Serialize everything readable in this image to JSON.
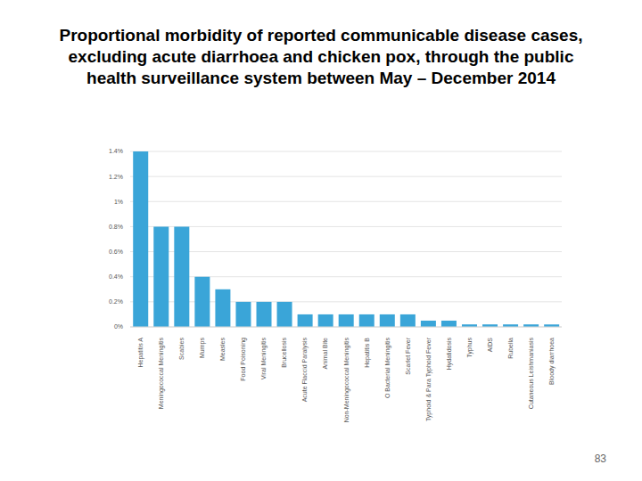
{
  "chart_data": {
    "type": "bar",
    "title": "Proportional morbidity of reported communicable disease cases, excluding acute diarrhoea and chicken pox, through the public health surveillance system between May – December 2014",
    "categories": [
      "Hepatitis A",
      "Meningococcal Meningitis",
      "Scabies",
      "Mumps",
      "Measles",
      "Food Poisoning",
      "Viral Meningitis",
      "Brucellosis",
      "Acute Flaccid Paralysis",
      "Animal Bite",
      "Non-Meningococcal Meningitis",
      "Hepatitis B",
      "O Bacterial Meningitis",
      "Scarlet Fever",
      "Typhoid & Para Typhoid Fever",
      "Hydatidosis",
      "Typhus",
      "AIDS",
      "Rubella",
      "Cutaneous Leishmaniasis",
      "Bloody diarrhoea"
    ],
    "values": [
      1.4,
      0.8,
      0.8,
      0.4,
      0.3,
      0.2,
      0.2,
      0.2,
      0.1,
      0.1,
      0.1,
      0.1,
      0.1,
      0.1,
      0.05,
      0.05,
      0.02,
      0.02,
      0.02,
      0.02,
      0.02
    ],
    "color": "#3aa5d8",
    "ylim": [
      0,
      1.4
    ],
    "yticks": [
      {
        "value": 0,
        "label": "0%"
      },
      {
        "value": 0.2,
        "label": "0.2%"
      },
      {
        "value": 0.4,
        "label": "0.4%"
      },
      {
        "value": 0.6,
        "label": "0.6%"
      },
      {
        "value": 0.8,
        "label": "0.8%"
      },
      {
        "value": 1,
        "label": "1%"
      },
      {
        "value": 1.2,
        "label": "1.2%"
      },
      {
        "value": 1.4,
        "label": "1.4%"
      }
    ],
    "grid": true,
    "annotations": [
      "83"
    ]
  }
}
